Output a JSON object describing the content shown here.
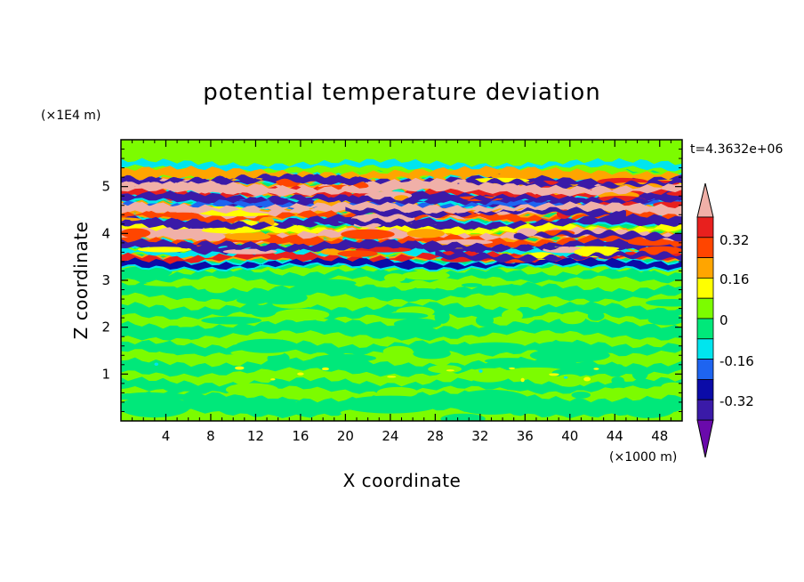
{
  "chart_data": {
    "type": "heatmap",
    "title": "potential temperature deviation",
    "xlabel": "X coordinate",
    "ylabel": "Z coordinate",
    "x_unit": "(×1000 m)",
    "y_unit": "(×1E4 m)",
    "time_label": "t=4.3632e+06",
    "xlim": [
      0,
      50
    ],
    "ylim": [
      0,
      6
    ],
    "x_ticks": [
      "4",
      "8",
      "12",
      "16",
      "20",
      "24",
      "28",
      "32",
      "36",
      "40",
      "44",
      "48"
    ],
    "y_ticks": [
      "1",
      "2",
      "3",
      "4",
      "5"
    ],
    "colorbar": {
      "labels": [
        "0.32",
        "0.16",
        "0",
        "-0.16",
        "-0.32"
      ],
      "levels": [
        -0.4,
        -0.32,
        -0.24,
        -0.16,
        -0.08,
        0,
        0.08,
        0.16,
        0.24,
        0.32,
        0.4
      ],
      "colors": [
        "#6a0aab",
        "#3a1aa8",
        "#0b0ba8",
        "#1e64f0",
        "#00e5ee",
        "#00e87a",
        "#7cfc00",
        "#ffff00",
        "#ffa500",
        "#ff4500",
        "#e8201e",
        "#f0b0a8"
      ]
    },
    "layers": [
      {
        "z_range": [
          0,
          3.2
        ],
        "description_value": "near 0 (-0.08 to 0.08)"
      },
      {
        "z_range": [
          3.3,
          5.3
        ],
        "description_value": "alternating bands from -0.4 to 0.4"
      },
      {
        "z_range": [
          5.3,
          6
        ],
        "description_value": "near 0"
      }
    ]
  }
}
